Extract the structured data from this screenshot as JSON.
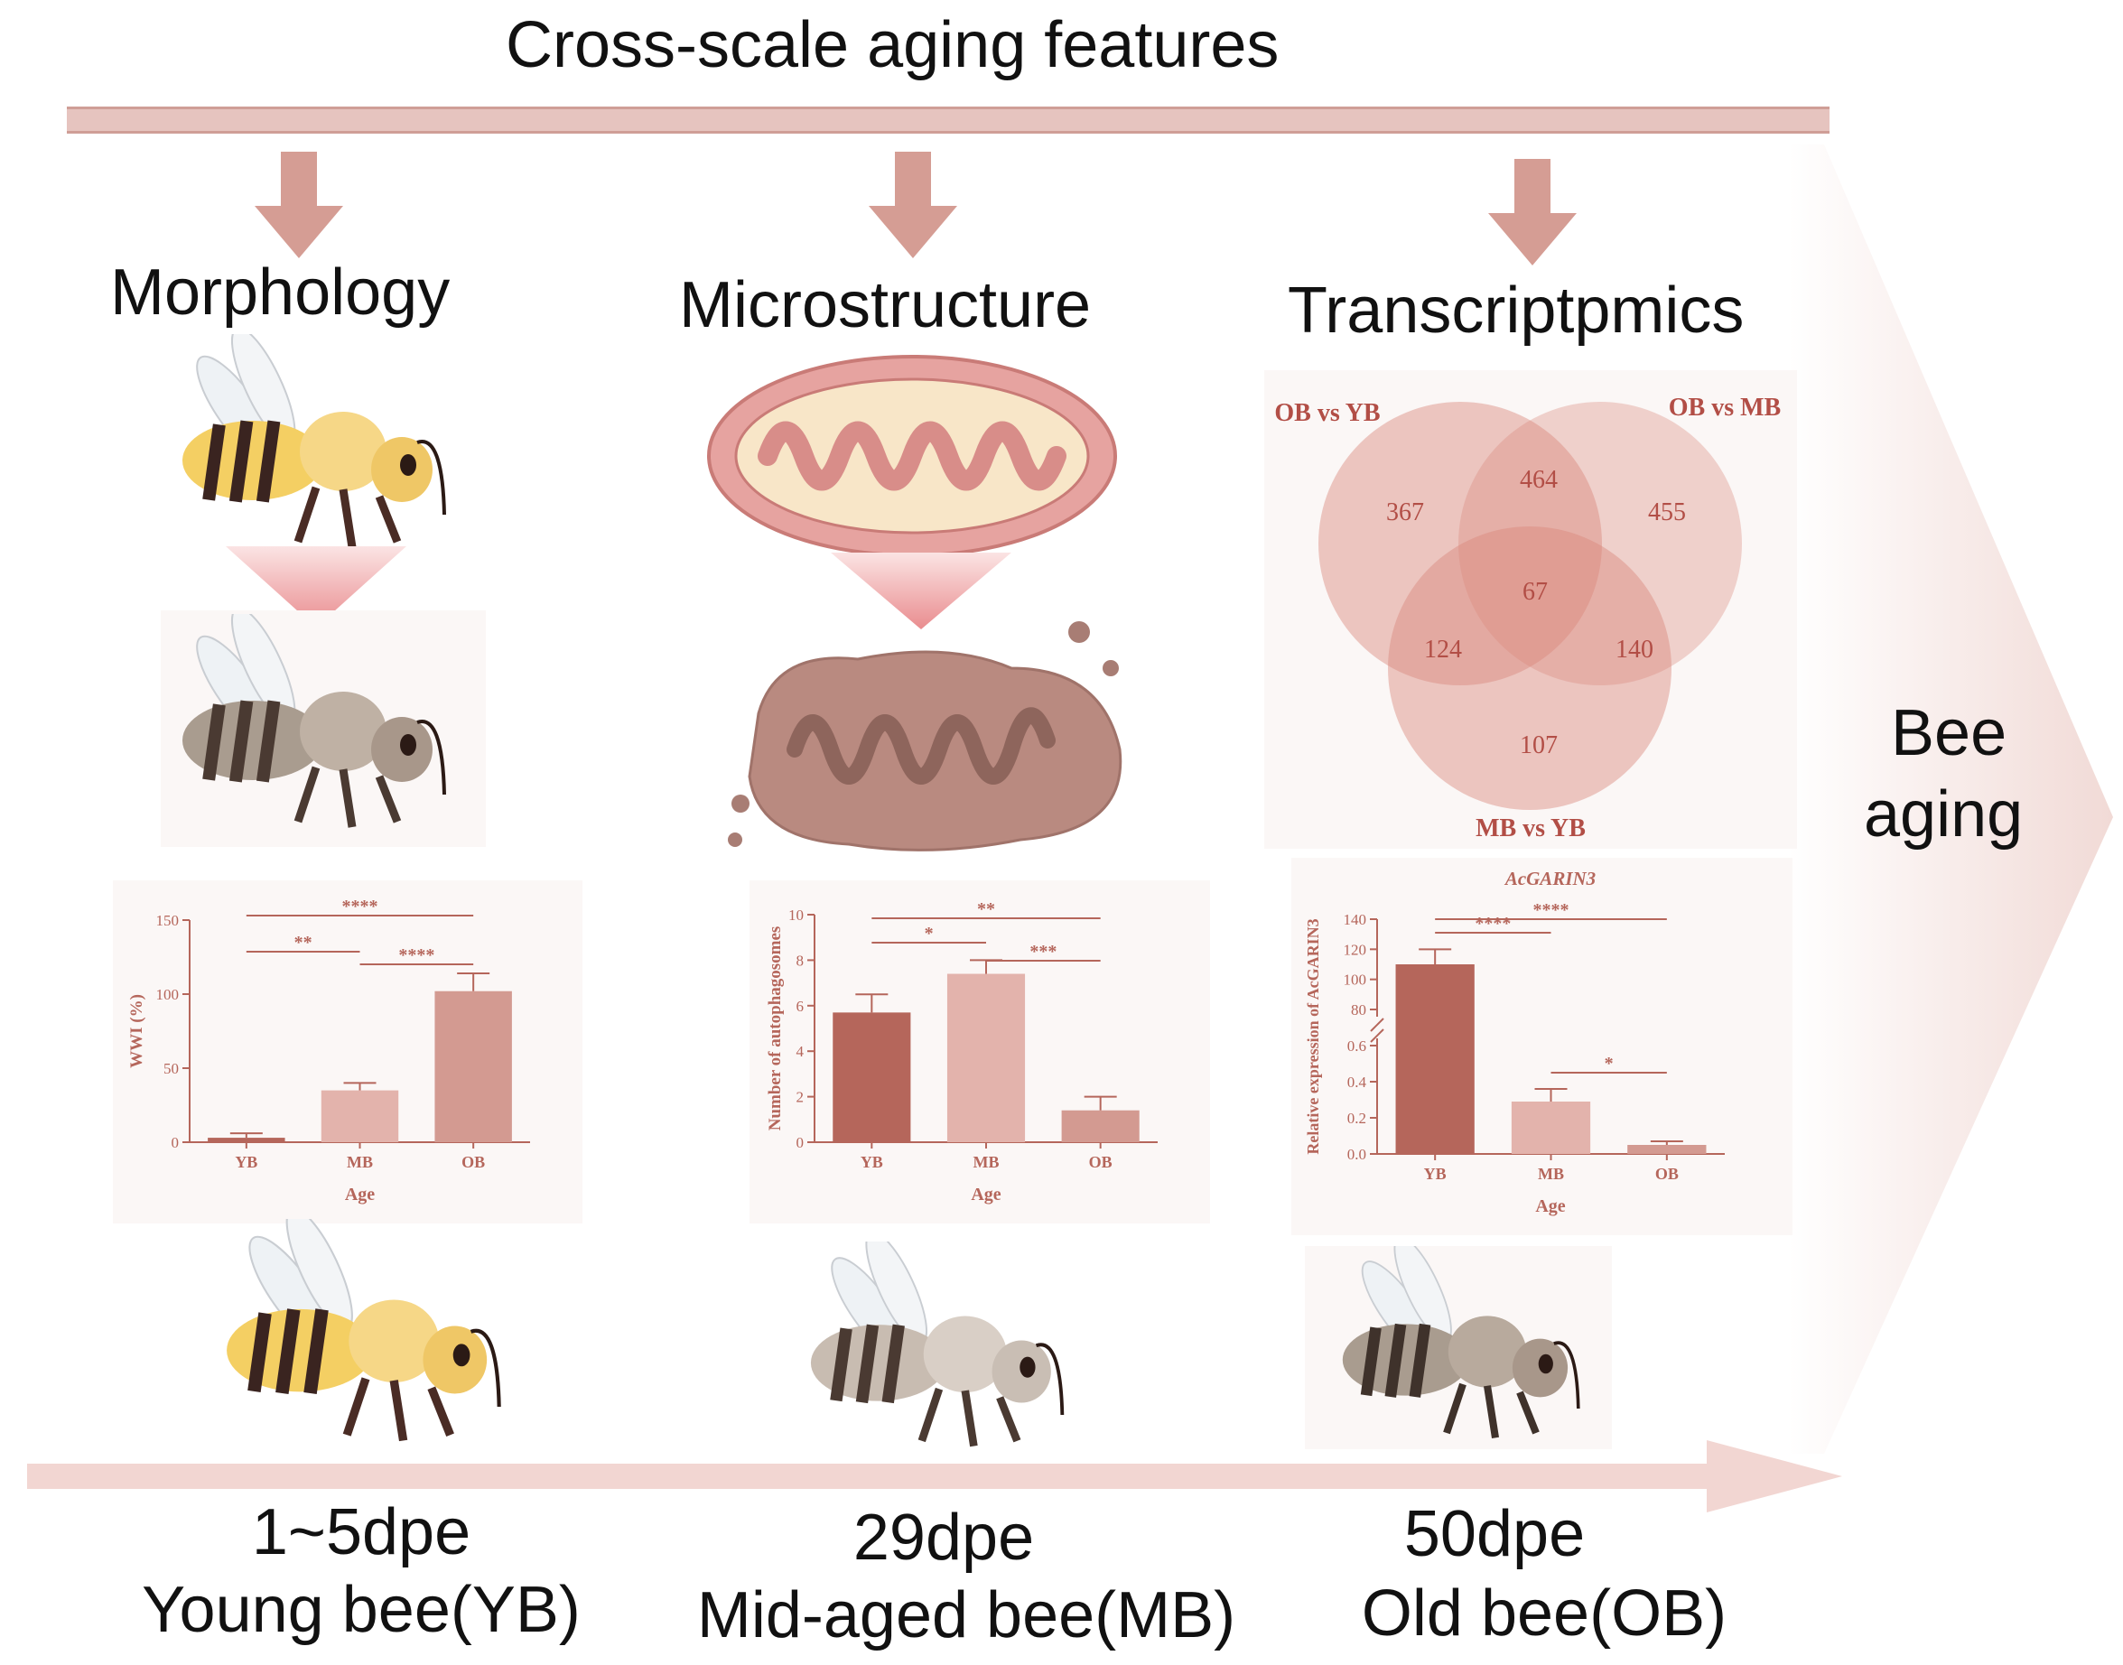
{
  "title": "Cross-scale aging features",
  "columns": {
    "morphology": "Morphology",
    "microstructure": "Microstructure",
    "transcriptomics": "Transcriptpmics"
  },
  "bee_aging_line1": "Bee",
  "bee_aging_line2": "aging",
  "timeline": [
    {
      "time": "1~5dpe",
      "label": "Young bee(YB)"
    },
    {
      "time": "29dpe",
      "label": "Mid-aged bee(MB)"
    },
    {
      "time": "50dpe",
      "label": "Old bee(OB)"
    }
  ],
  "venn": {
    "sets": [
      "OB vs YB",
      "OB vs MB",
      "MB vs YB"
    ],
    "counts": {
      "a_only": "367",
      "ab": "464",
      "b_only": "455",
      "abc": "67",
      "ac": "124",
      "bc": "140",
      "c_only": "107"
    },
    "color": "#d9877c"
  },
  "chart_data": [
    {
      "type": "bar",
      "categories": [
        "YB",
        "MB",
        "OB"
      ],
      "values": [
        3,
        35,
        102
      ],
      "errors": [
        3,
        5,
        12
      ],
      "ylabel": "WWI (%)",
      "xlabel": "Age",
      "ylim": [
        0,
        150
      ],
      "yticks": [
        0,
        50,
        100,
        150
      ],
      "significance": [
        {
          "pair": [
            "YB",
            "MB"
          ],
          "label": "**"
        },
        {
          "pair": [
            "MB",
            "OB"
          ],
          "label": "****"
        },
        {
          "pair": [
            "YB",
            "OB"
          ],
          "label": "****"
        }
      ],
      "colors": [
        "#b5665b",
        "#e3b3ac",
        "#d39a91"
      ]
    },
    {
      "type": "bar",
      "categories": [
        "YB",
        "MB",
        "OB"
      ],
      "values": [
        5.7,
        7.4,
        1.4
      ],
      "errors": [
        0.8,
        0.6,
        0.6
      ],
      "ylabel": "Number of autophagosomes",
      "xlabel": "Age",
      "ylim": [
        0,
        10
      ],
      "yticks": [
        0,
        2,
        4,
        6,
        8,
        10
      ],
      "significance": [
        {
          "pair": [
            "YB",
            "MB"
          ],
          "label": "*"
        },
        {
          "pair": [
            "MB",
            "OB"
          ],
          "label": "***"
        },
        {
          "pair": [
            "YB",
            "OB"
          ],
          "label": "**"
        }
      ],
      "colors": [
        "#b5665b",
        "#e3b3ac",
        "#d39a91"
      ]
    },
    {
      "type": "bar",
      "title": "AcGARIN3",
      "categories": [
        "YB",
        "MB",
        "OB"
      ],
      "values": [
        110,
        0.29,
        0.05
      ],
      "errors": [
        10,
        0.07,
        0.02
      ],
      "ylabel": "Relative expression of AcGARIN3",
      "xlabel": "Age",
      "broken_axis": {
        "lower": [
          0,
          0.6
        ],
        "upper": [
          80,
          140
        ]
      },
      "yticks_lower": [
        "0.0",
        "0.2",
        "0.4",
        "0.6"
      ],
      "yticks_upper": [
        "80",
        "100",
        "120",
        "140"
      ],
      "significance": [
        {
          "pair": [
            "YB",
            "MB"
          ],
          "label": "****"
        },
        {
          "pair": [
            "YB",
            "OB"
          ],
          "label": "****"
        },
        {
          "pair": [
            "MB",
            "OB"
          ],
          "label": "*"
        }
      ],
      "colors": [
        "#b5665b",
        "#e3b3ac",
        "#d39a91"
      ]
    }
  ]
}
